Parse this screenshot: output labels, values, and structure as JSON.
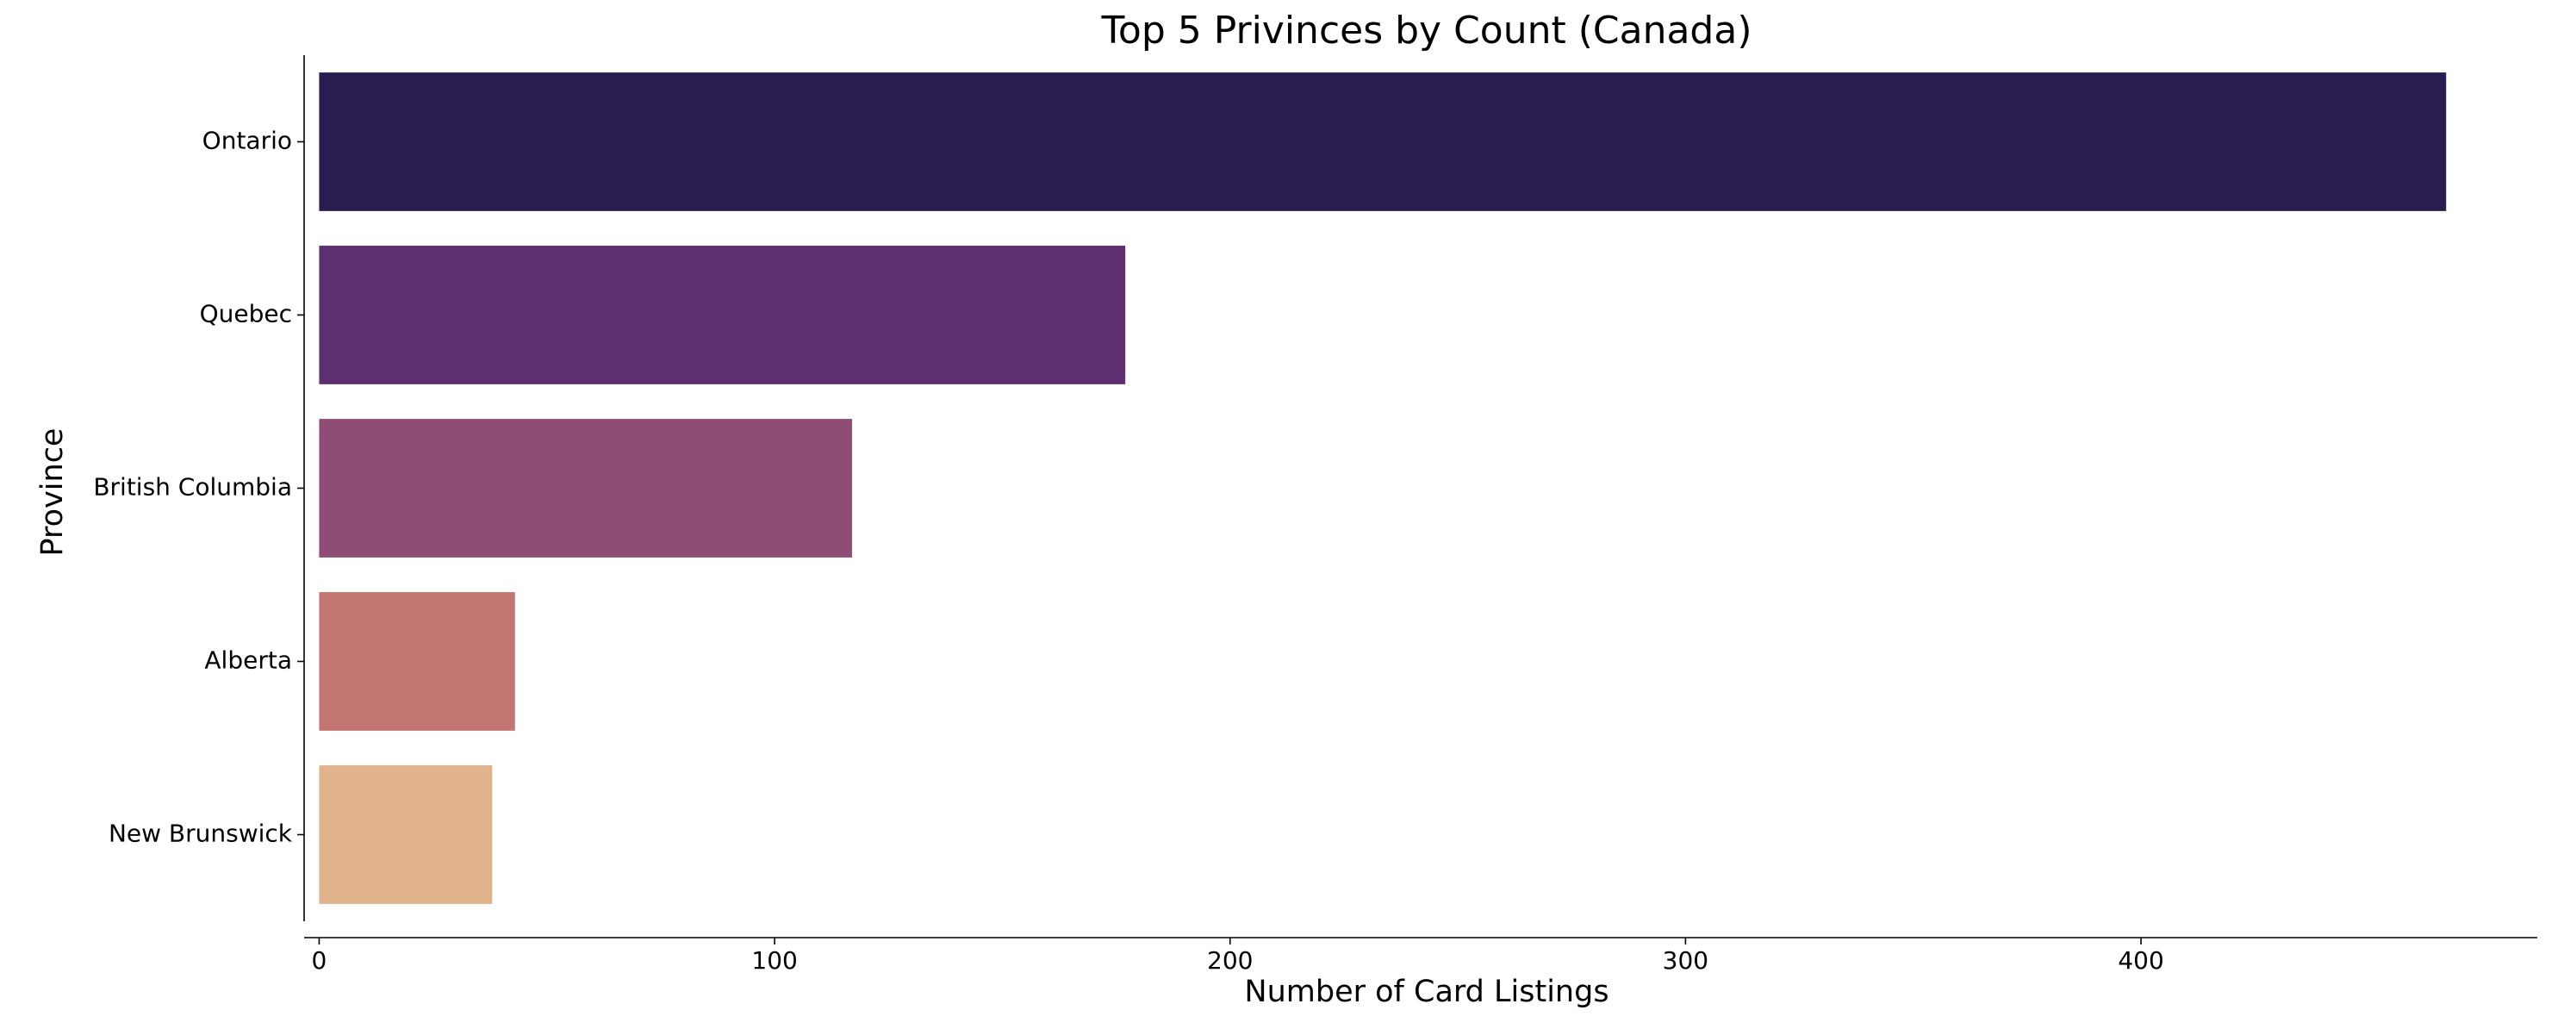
{
  "chart_data": {
    "type": "bar",
    "orientation": "horizontal",
    "title": "Top 5 Privinces by Count (Canada)",
    "xlabel": "Number of Card Listings",
    "ylabel": "Province",
    "categories": [
      "Ontario",
      "Quebec",
      "British Columbia",
      "Alberta",
      "New Brunswick"
    ],
    "values": [
      467,
      177,
      117,
      43,
      38
    ],
    "colors": [
      "#2b1c50",
      "#5e2f70",
      "#8f4d75",
      "#c27571",
      "#e0b38c"
    ],
    "xticks": [
      0,
      100,
      200,
      300,
      400
    ],
    "xlim": [
      -3.3,
      487
    ],
    "grid": false
  }
}
